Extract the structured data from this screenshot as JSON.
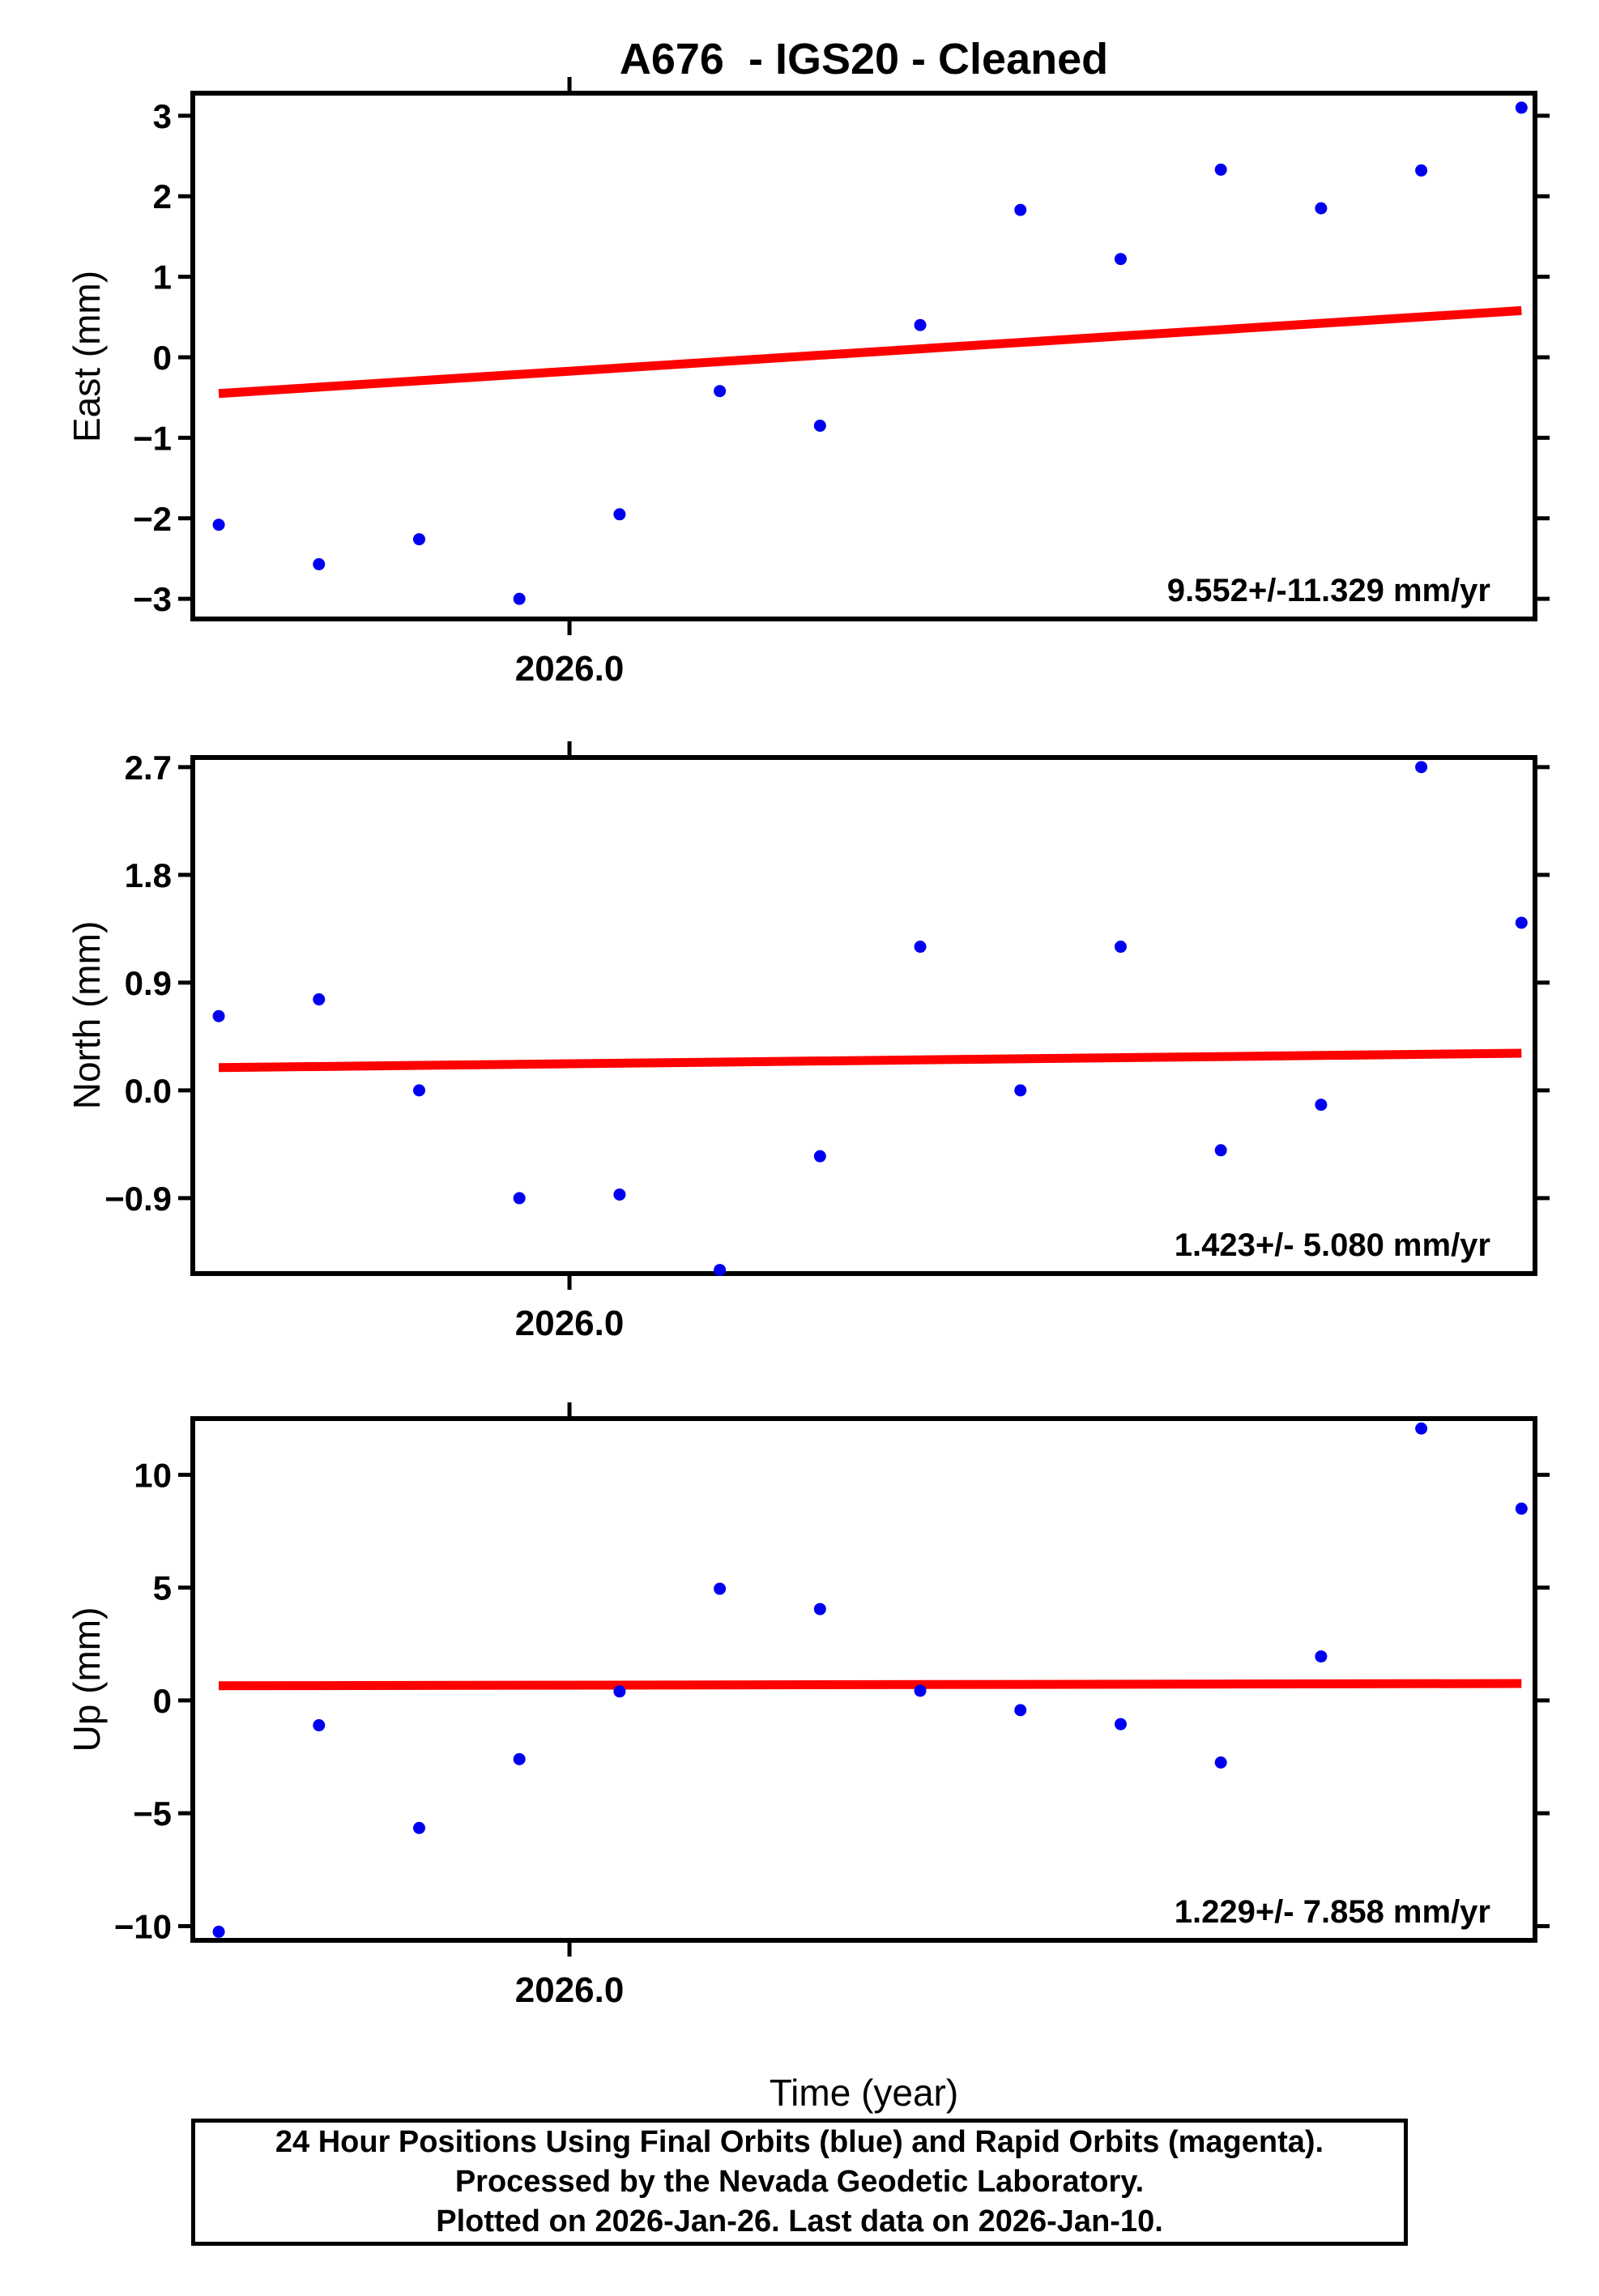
{
  "title": "A676  - IGS20 - Cleaned",
  "xlabel": "Time (year)",
  "colors": {
    "points": "#0000f0",
    "trend": "#ff0000",
    "frame": "#000000",
    "background": "#ffffff"
  },
  "caption": {
    "lines": [
      "24 Hour Positions Using Final Orbits (blue) and Rapid Orbits (magenta).",
      "Processed by the Nevada Geodetic Laboratory.",
      "Plotted on 2026-Jan-26. Last data on 2026-Jan-10."
    ]
  },
  "chart_data": [
    {
      "type": "scatter",
      "name": "east",
      "ylabel": "East (mm)",
      "xlim": [
        2025.9897,
        2026.0264
      ],
      "ylim": [
        -3.25,
        3.28
      ],
      "x": [
        2025.99041,
        2025.99315,
        2025.99589,
        2025.99863,
        2026.00137,
        2026.00411,
        2026.00685,
        2026.00959,
        2026.01233,
        2026.01507,
        2026.01781,
        2026.02055,
        2026.02329,
        2026.02603
      ],
      "y": [
        -2.08,
        -2.57,
        -2.26,
        -3.0,
        -1.95,
        -0.42,
        -0.85,
        0.4,
        1.83,
        1.22,
        2.33,
        1.85,
        2.32,
        3.1
      ],
      "yticks": [
        {
          "v": 3,
          "label": "3"
        },
        {
          "v": 2,
          "label": "2"
        },
        {
          "v": 1,
          "label": "1"
        },
        {
          "v": 0,
          "label": "0"
        },
        {
          "v": -1,
          "label": "−1"
        },
        {
          "v": -2,
          "label": "−2"
        },
        {
          "v": -3,
          "label": "−3"
        }
      ],
      "xticks": [
        {
          "v": 2026.0,
          "label": "2026.0"
        }
      ],
      "trend": {
        "x": [
          2025.99041,
          2026.02603
        ],
        "y": [
          -0.45,
          0.58
        ],
        "annotation": "9.552+/-11.329 mm/yr"
      }
    },
    {
      "type": "scatter",
      "name": "north",
      "ylabel": "North (mm)",
      "xlim": [
        2025.9897,
        2026.0264
      ],
      "ylim": [
        -1.53,
        2.78
      ],
      "x": [
        2025.99041,
        2025.99315,
        2025.99589,
        2025.99863,
        2026.00137,
        2026.00411,
        2026.00685,
        2026.00959,
        2026.01233,
        2026.01507,
        2026.01781,
        2026.02055,
        2026.02329,
        2026.02603
      ],
      "y": [
        0.62,
        0.76,
        0.0,
        -0.9,
        -0.87,
        -1.5,
        -0.55,
        1.2,
        0.0,
        1.2,
        -0.5,
        -0.12,
        2.7,
        1.4
      ],
      "yticks": [
        {
          "v": 2.7,
          "label": "2.7"
        },
        {
          "v": 1.8,
          "label": "1.8"
        },
        {
          "v": 0.9,
          "label": "0.9"
        },
        {
          "v": 0.0,
          "label": "0.0"
        },
        {
          "v": -0.9,
          "label": "−0.9"
        }
      ],
      "xticks": [
        {
          "v": 2026.0,
          "label": "2026.0"
        }
      ],
      "trend": {
        "x": [
          2025.99041,
          2026.02603
        ],
        "y": [
          0.19,
          0.31
        ],
        "annotation": "1.423+/- 5.080 mm/yr"
      }
    },
    {
      "type": "scatter",
      "name": "up",
      "ylabel": "Up (mm)",
      "xlim": [
        2025.9897,
        2026.0264
      ],
      "ylim": [
        -10.63,
        12.49
      ],
      "x": [
        2025.99041,
        2025.99315,
        2025.99589,
        2025.99863,
        2026.00137,
        2026.00411,
        2026.00685,
        2026.00959,
        2026.01233,
        2026.01507,
        2026.01781,
        2026.02055,
        2026.02329,
        2026.02603
      ],
      "y": [
        -10.25,
        -1.1,
        -5.65,
        -2.6,
        0.4,
        4.95,
        4.05,
        0.43,
        -0.43,
        -1.05,
        -2.75,
        1.95,
        12.05,
        8.5
      ],
      "yticks": [
        {
          "v": 10,
          "label": "10"
        },
        {
          "v": 5,
          "label": "5"
        },
        {
          "v": 0,
          "label": "0"
        },
        {
          "v": -5,
          "label": "−5"
        },
        {
          "v": -10,
          "label": "−10"
        }
      ],
      "xticks": [
        {
          "v": 2026.0,
          "label": "2026.0"
        }
      ],
      "trend": {
        "x": [
          2025.99041,
          2026.02603
        ],
        "y": [
          0.65,
          0.75
        ],
        "annotation": "1.229+/- 7.858 mm/yr"
      }
    }
  ]
}
